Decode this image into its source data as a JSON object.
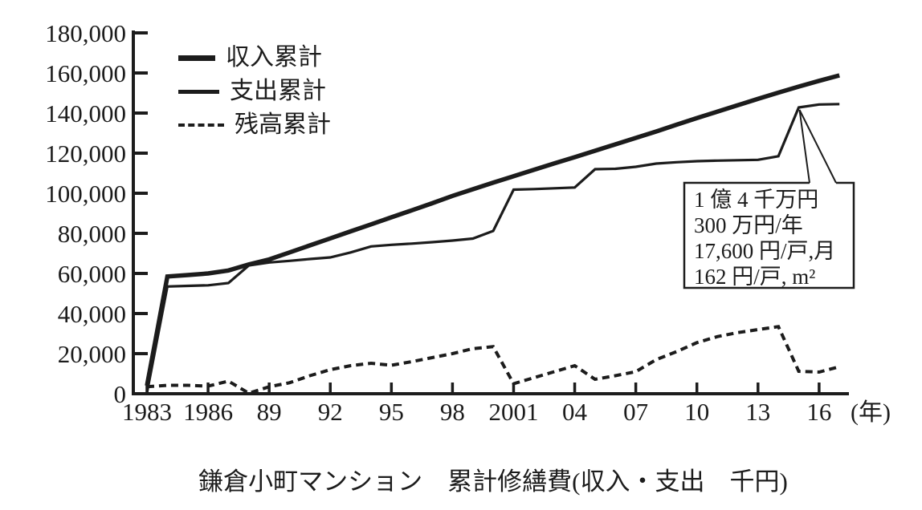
{
  "caption": "鎌倉小町マンション　累計修繕費(収入・支出　千円)",
  "legend": {
    "items": [
      {
        "label": "収入累計",
        "style": "solid-thick"
      },
      {
        "label": "支出累計",
        "style": "solid"
      },
      {
        "label": "残高累計",
        "style": "dashed"
      }
    ]
  },
  "annotation": {
    "lines": [
      "1 億 4 千万円",
      "300 万円/年",
      "17,600 円/戸,月",
      "162 円/戸, m²"
    ]
  },
  "axes": {
    "y_tick_labels": [
      "0",
      "20,000",
      "40,000",
      "60,000",
      "80,000",
      "100,000",
      "120,000",
      "140,000",
      "160,000",
      "180,000"
    ],
    "y_tick_step": 20000,
    "x_ticks": [
      {
        "label": "1983",
        "year": 1983
      },
      {
        "label": "1986",
        "year": 1986
      },
      {
        "label": "89",
        "year": 1989
      },
      {
        "label": "92",
        "year": 1992
      },
      {
        "label": "95",
        "year": 1995
      },
      {
        "label": "98",
        "year": 1998
      },
      {
        "label": "2001",
        "year": 2001
      },
      {
        "label": "04",
        "year": 2004
      },
      {
        "label": "07",
        "year": 2007
      },
      {
        "label": "10",
        "year": 2010
      },
      {
        "label": "13",
        "year": 2013
      },
      {
        "label": "16",
        "year": 2016
      }
    ],
    "x_unit": "(年)"
  },
  "colors": {
    "ink": "#1c1c1c",
    "background": "#ffffff"
  },
  "chart_data": {
    "type": "line",
    "title": "鎌倉小町マンション　累計修繕費(収入・支出　千円)",
    "xlabel": "年",
    "ylabel": "千円",
    "ylim": [
      0,
      180000
    ],
    "grid": false,
    "legend_position": "top-left-inside",
    "x": [
      1983,
      1984,
      1985,
      1986,
      1987,
      1988,
      1989,
      1990,
      1991,
      1992,
      1993,
      1994,
      1995,
      1996,
      1997,
      1998,
      1999,
      2000,
      2001,
      2002,
      2003,
      2004,
      2005,
      2006,
      2007,
      2008,
      2009,
      2010,
      2011,
      2012,
      2013,
      2014,
      2015,
      2016,
      2017
    ],
    "series": [
      {
        "name": "収入累計",
        "style": "solid-thick",
        "values": [
          4000,
          58500,
          59200,
          60000,
          61500,
          64500,
          67000,
          70500,
          74000,
          77500,
          81000,
          84500,
          88000,
          91500,
          95000,
          98700,
          102000,
          105300,
          108500,
          111700,
          114900,
          118000,
          121200,
          124400,
          127600,
          130800,
          134200,
          137500,
          140700,
          143900,
          147100,
          150200,
          153200,
          156100,
          158800
        ]
      },
      {
        "name": "支出累計",
        "style": "solid",
        "values": [
          500,
          53500,
          53800,
          54100,
          55200,
          64000,
          65500,
          66300,
          67200,
          68000,
          70500,
          73500,
          74300,
          74900,
          75600,
          76400,
          77400,
          81200,
          101800,
          102100,
          102500,
          102900,
          112000,
          112200,
          113200,
          114800,
          115500,
          116000,
          116300,
          116500,
          116700,
          118500,
          142800,
          144300,
          144500
        ]
      },
      {
        "name": "残高累計",
        "style": "dashed",
        "values": [
          3500,
          4200,
          4200,
          3800,
          6300,
          300,
          3500,
          5500,
          9000,
          12000,
          14000,
          15200,
          14200,
          16000,
          18000,
          20000,
          22500,
          23500,
          5000,
          8000,
          11000,
          14000,
          7200,
          9000,
          11000,
          17000,
          21000,
          25500,
          28500,
          30500,
          32000,
          33500,
          11200,
          10800,
          13500
        ]
      }
    ],
    "annotation_target": {
      "series": "支出累計",
      "year": 2015,
      "value": 142800
    }
  }
}
